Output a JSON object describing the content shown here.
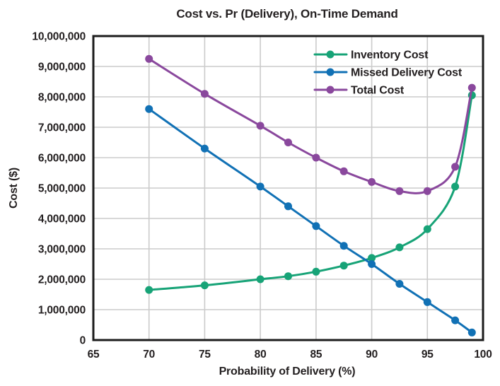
{
  "chart_data": {
    "type": "line",
    "title": "Cost vs. Pr (Delivery), On-Time Demand",
    "xlabel": "Probability of Delivery (%)",
    "ylabel": "Cost ($)",
    "xlim": [
      65,
      100
    ],
    "ylim": [
      0,
      10000000
    ],
    "grid": true,
    "legend_position": "top-right-inside",
    "x_ticks": [
      65,
      70,
      75,
      80,
      85,
      90,
      95,
      100
    ],
    "x_tick_labels": [
      "65",
      "70",
      "75",
      "80",
      "85",
      "90",
      "95",
      "100"
    ],
    "y_ticks": [
      0,
      1000000,
      2000000,
      3000000,
      4000000,
      5000000,
      6000000,
      7000000,
      8000000,
      9000000,
      10000000
    ],
    "y_tick_labels": [
      "0",
      "1,000,000",
      "2,000,000",
      "3,000,000",
      "4,000,000",
      "5,000,000",
      "6,000,000",
      "7,000,000",
      "8,000,000",
      "9,000,000",
      "10,000,000"
    ],
    "x": [
      70,
      75,
      80,
      82.5,
      85,
      87.5,
      90,
      92.5,
      95,
      97.5,
      99
    ],
    "series": [
      {
        "name": "Inventory Cost",
        "color": "#17a377",
        "values": [
          1650000,
          1800000,
          2000000,
          2100000,
          2250000,
          2450000,
          2700000,
          3050000,
          3650000,
          5050000,
          8050000
        ]
      },
      {
        "name": "Missed Delivery Cost",
        "color": "#1171b5",
        "values": [
          7600000,
          6300000,
          5050000,
          4400000,
          3750000,
          3100000,
          2500000,
          1850000,
          1250000,
          650000,
          250000
        ]
      },
      {
        "name": "Total Cost",
        "color": "#8a489d",
        "values": [
          9250000,
          8100000,
          7050000,
          6500000,
          6000000,
          5550000,
          5200000,
          4900000,
          4900000,
          5700000,
          8300000
        ]
      }
    ]
  },
  "colors": {
    "background": "#ffffff",
    "grid": "#cbcbcb",
    "frame": "#1c1c1c",
    "text": "#231f20"
  }
}
